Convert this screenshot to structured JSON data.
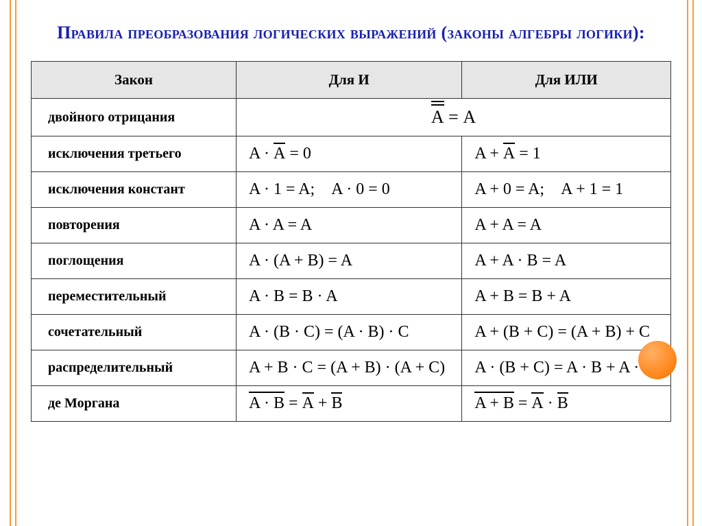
{
  "title": "Правила преобразования логических выражений (законы алгебры логики):",
  "headers": {
    "law": "Закон",
    "and": "Для И",
    "or": "Для ИЛИ"
  },
  "rows": {
    "doubleNeg": {
      "name": "двойного отрицания"
    },
    "exclThird": {
      "name": "исключения третьего"
    },
    "exclConst": {
      "name": "исключения констант",
      "and": "A · 1 = A; A · 0 = 0",
      "or": "A + 0 = A; A + 1 = 1"
    },
    "repeat": {
      "name": "повторения",
      "and": "A · A = A",
      "or": "A + A = A"
    },
    "absorb": {
      "name": "поглощения",
      "and": "A · (A + B) = A",
      "or": "A + A · B = A"
    },
    "commute": {
      "name": "переместительный",
      "and": "A · B = B · A",
      "or": "A + B = B + A"
    },
    "assoc": {
      "name": "сочетательный",
      "and": "A · (B · C) = (A · B) · C",
      "or": "A + (B + C) = (A + B) + C"
    },
    "distrib": {
      "name": "распределительный",
      "and": "A + B · C = (A + B) · (A + C)",
      "or": "A · (B + C) = A · B + A · C"
    },
    "demorgan": {
      "name": "де Моргана"
    }
  },
  "colors": {
    "titleColor": "#1720b0",
    "borderAccent": "#ff9933",
    "headerBg": "#e6e6e6",
    "dot": "#ff8a1e"
  }
}
